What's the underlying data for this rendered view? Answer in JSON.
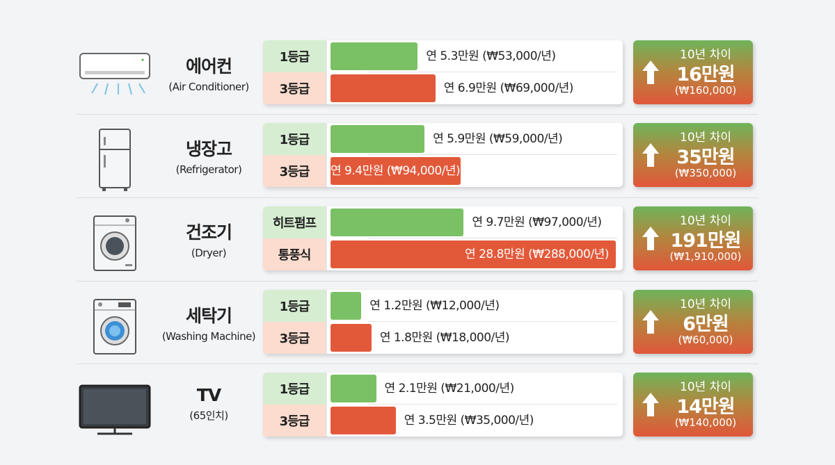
{
  "colors": {
    "efficient": "#79c164",
    "inefficient": "#e2593a",
    "badge_top": "#6fb45a",
    "badge_bottom": "#e1573a"
  },
  "chart_data": {
    "type": "bar",
    "unit": "만원/년",
    "rows": [
      {
        "icon": "air-conditioner-icon",
        "name": "에어컨",
        "name_en": "(Air Conditioner)",
        "labels": [
          "1등급",
          "3등급"
        ],
        "values": [
          5.3,
          6.9
        ],
        "texts": [
          "연 5.3만원 (₩53,000/년)",
          "연 6.9만원 (₩69,000/년)"
        ],
        "diff_title": "10년 차이",
        "diff": "16만원",
        "diff_krw": "(₩160,000)"
      },
      {
        "icon": "refrigerator-icon",
        "name": "냉장고",
        "name_en": "(Refrigerator)",
        "labels": [
          "1등급",
          "3등급"
        ],
        "values": [
          5.9,
          9.4
        ],
        "texts": [
          "연 5.9만원 (₩59,000/년)",
          "연 9.4만원 (₩94,000/년)"
        ],
        "diff_title": "10년 차이",
        "diff": "35만원",
        "diff_krw": "(₩350,000)"
      },
      {
        "icon": "dryer-icon",
        "name": "건조기",
        "name_en": "(Dryer)",
        "labels": [
          "히트펌프",
          "통풍식"
        ],
        "values": [
          9.7,
          28.8
        ],
        "texts": [
          "연 9.7만원 (₩97,000/년)",
          "연 28.8만원 (₩288,000/년)"
        ],
        "diff_title": "10년 차이",
        "diff": "191만원",
        "diff_krw": "(₩1,910,000)"
      },
      {
        "icon": "washing-machine-icon",
        "name": "세탁기",
        "name_en": "(Washing Machine)",
        "labels": [
          "1등급",
          "3등급"
        ],
        "values": [
          1.2,
          1.8
        ],
        "texts": [
          "연 1.2만원 (₩12,000/년)",
          "연 1.8만원 (₩18,000/년)"
        ],
        "diff_title": "10년 차이",
        "diff": "6만원",
        "diff_krw": "(₩60,000)"
      },
      {
        "icon": "tv-icon",
        "name": "TV",
        "name_en": "(65인치)",
        "labels": [
          "1등급",
          "3등급"
        ],
        "values": [
          2.1,
          3.5
        ],
        "texts": [
          "연 2.1만원 (₩21,000/년)",
          "연 3.5만원 (₩35,000/년)"
        ],
        "diff_title": "10년 차이",
        "diff": "14만원",
        "diff_krw": "(₩140,000)"
      }
    ]
  }
}
